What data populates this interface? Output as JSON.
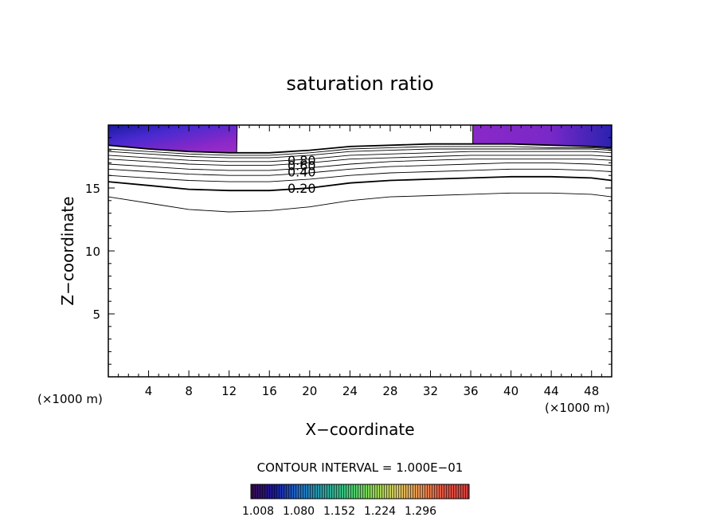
{
  "chart_data": {
    "type": "contour",
    "title": "saturation ratio",
    "xlabel": "X−coordinate",
    "ylabel": "Z−coordinate",
    "x_unit_left": "(×1000 m)",
    "x_unit_right": "(×1000 m)",
    "xlim": [
      0,
      50
    ],
    "ylim": [
      0,
      20
    ],
    "x_ticks": [
      4,
      8,
      12,
      16,
      20,
      24,
      28,
      32,
      36,
      40,
      44,
      48
    ],
    "y_ticks": [
      5,
      10,
      15
    ],
    "contour_interval_text": "CONTOUR INTERVAL = 1.000E−01",
    "contour_labels": [
      {
        "text": "0.80",
        "x": 17.8,
        "y": 17.2
      },
      {
        "text": "0.60",
        "x": 17.8,
        "y": 16.8
      },
      {
        "text": "0.40",
        "x": 17.8,
        "y": 16.3
      },
      {
        "text": "0.20",
        "x": 17.8,
        "y": 15.0
      }
    ],
    "contours": [
      {
        "level": 0.1,
        "bold": false,
        "points": [
          [
            0,
            14.3
          ],
          [
            4,
            13.8
          ],
          [
            8,
            13.3
          ],
          [
            12,
            13.1
          ],
          [
            16,
            13.2
          ],
          [
            20,
            13.5
          ],
          [
            24,
            14.0
          ],
          [
            28,
            14.3
          ],
          [
            32,
            14.4
          ],
          [
            36,
            14.5
          ],
          [
            40,
            14.6
          ],
          [
            44,
            14.6
          ],
          [
            48,
            14.5
          ],
          [
            50,
            14.3
          ]
        ]
      },
      {
        "level": 0.2,
        "bold": true,
        "points": [
          [
            0,
            15.5
          ],
          [
            4,
            15.2
          ],
          [
            8,
            14.9
          ],
          [
            12,
            14.8
          ],
          [
            16,
            14.8
          ],
          [
            20,
            15.0
          ],
          [
            24,
            15.4
          ],
          [
            28,
            15.6
          ],
          [
            32,
            15.7
          ],
          [
            36,
            15.8
          ],
          [
            40,
            15.9
          ],
          [
            44,
            15.9
          ],
          [
            48,
            15.8
          ],
          [
            50,
            15.6
          ]
        ]
      },
      {
        "level": 0.3,
        "bold": false,
        "points": [
          [
            0,
            16.0
          ],
          [
            4,
            15.8
          ],
          [
            8,
            15.6
          ],
          [
            12,
            15.5
          ],
          [
            16,
            15.5
          ],
          [
            20,
            15.7
          ],
          [
            24,
            16.0
          ],
          [
            28,
            16.2
          ],
          [
            32,
            16.3
          ],
          [
            36,
            16.4
          ],
          [
            40,
            16.5
          ],
          [
            44,
            16.5
          ],
          [
            48,
            16.4
          ],
          [
            50,
            16.3
          ]
        ]
      },
      {
        "level": 0.4,
        "bold": false,
        "points": [
          [
            0,
            16.5
          ],
          [
            4,
            16.3
          ],
          [
            8,
            16.1
          ],
          [
            12,
            16.0
          ],
          [
            16,
            16.0
          ],
          [
            20,
            16.2
          ],
          [
            24,
            16.5
          ],
          [
            28,
            16.7
          ],
          [
            32,
            16.8
          ],
          [
            36,
            16.9
          ],
          [
            40,
            17.0
          ],
          [
            44,
            17.0
          ],
          [
            48,
            16.9
          ],
          [
            50,
            16.8
          ]
        ]
      },
      {
        "level": 0.5,
        "bold": false,
        "points": [
          [
            0,
            16.9
          ],
          [
            4,
            16.7
          ],
          [
            8,
            16.5
          ],
          [
            12,
            16.4
          ],
          [
            16,
            16.4
          ],
          [
            20,
            16.6
          ],
          [
            24,
            16.9
          ],
          [
            28,
            17.1
          ],
          [
            32,
            17.2
          ],
          [
            36,
            17.3
          ],
          [
            40,
            17.3
          ],
          [
            44,
            17.3
          ],
          [
            48,
            17.3
          ],
          [
            50,
            17.2
          ]
        ]
      },
      {
        "level": 0.6,
        "bold": false,
        "points": [
          [
            0,
            17.3
          ],
          [
            4,
            17.1
          ],
          [
            8,
            16.9
          ],
          [
            12,
            16.8
          ],
          [
            16,
            16.8
          ],
          [
            20,
            17.0
          ],
          [
            24,
            17.3
          ],
          [
            28,
            17.4
          ],
          [
            32,
            17.5
          ],
          [
            36,
            17.6
          ],
          [
            40,
            17.6
          ],
          [
            44,
            17.6
          ],
          [
            48,
            17.6
          ],
          [
            50,
            17.5
          ]
        ]
      },
      {
        "level": 0.7,
        "bold": false,
        "points": [
          [
            0,
            17.6
          ],
          [
            4,
            17.4
          ],
          [
            8,
            17.2
          ],
          [
            12,
            17.1
          ],
          [
            16,
            17.1
          ],
          [
            20,
            17.3
          ],
          [
            24,
            17.6
          ],
          [
            28,
            17.7
          ],
          [
            32,
            17.8
          ],
          [
            36,
            17.9
          ],
          [
            40,
            17.9
          ],
          [
            44,
            17.9
          ],
          [
            48,
            17.9
          ],
          [
            50,
            17.8
          ]
        ]
      },
      {
        "level": 0.8,
        "bold": false,
        "points": [
          [
            0,
            17.9
          ],
          [
            4,
            17.7
          ],
          [
            8,
            17.5
          ],
          [
            12,
            17.4
          ],
          [
            16,
            17.4
          ],
          [
            20,
            17.6
          ],
          [
            24,
            17.9
          ],
          [
            28,
            18.0
          ],
          [
            32,
            18.1
          ],
          [
            36,
            18.1
          ],
          [
            40,
            18.1
          ],
          [
            44,
            18.1
          ],
          [
            48,
            18.1
          ],
          [
            50,
            18.0
          ]
        ]
      },
      {
        "level": 0.9,
        "bold": false,
        "points": [
          [
            0,
            18.1
          ],
          [
            4,
            17.9
          ],
          [
            8,
            17.7
          ],
          [
            12,
            17.6
          ],
          [
            16,
            17.6
          ],
          [
            20,
            17.8
          ],
          [
            24,
            18.1
          ],
          [
            28,
            18.2
          ],
          [
            32,
            18.3
          ],
          [
            36,
            18.3
          ],
          [
            40,
            18.3
          ],
          [
            44,
            18.2
          ],
          [
            48,
            18.2
          ],
          [
            50,
            18.1
          ]
        ]
      },
      {
        "level": 1.0,
        "bold": true,
        "points": [
          [
            0,
            18.4
          ],
          [
            4,
            18.1
          ],
          [
            8,
            17.9
          ],
          [
            12,
            17.8
          ],
          [
            16,
            17.8
          ],
          [
            20,
            18.0
          ],
          [
            24,
            18.3
          ],
          [
            28,
            18.4
          ],
          [
            32,
            18.5
          ],
          [
            36,
            18.5
          ],
          [
            40,
            18.5
          ],
          [
            44,
            18.4
          ],
          [
            48,
            18.3
          ],
          [
            50,
            18.2
          ]
        ]
      }
    ],
    "shaded_regions": [
      {
        "name": "left",
        "x": [
          0,
          12.8
        ]
      },
      {
        "name": "right",
        "x": [
          36.2,
          50
        ]
      }
    ],
    "colorbar": {
      "labels": [
        "1.008",
        "1.080",
        "1.152",
        "1.224",
        "1.296"
      ],
      "colors": [
        "#3a0a4a",
        "#1a1aa0",
        "#1e6ec8",
        "#2aa0a0",
        "#3cc878",
        "#8cd850",
        "#d8c860",
        "#e89050",
        "#e05040",
        "#d04040"
      ]
    }
  }
}
